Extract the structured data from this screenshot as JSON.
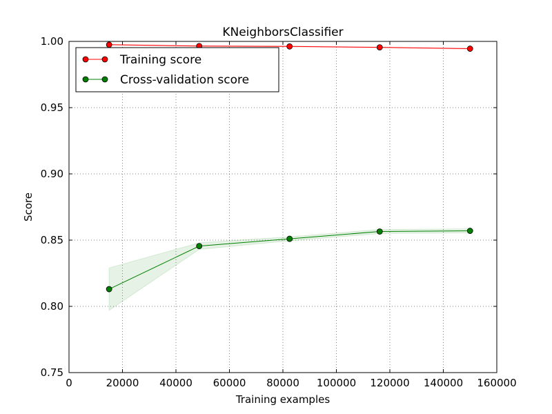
{
  "chart_data": {
    "type": "line",
    "title": "KNeighborsClassifier",
    "xlabel": "Training examples",
    "ylabel": "Score",
    "xlim": [
      0,
      160000
    ],
    "ylim": [
      0.75,
      1.0
    ],
    "x_ticks": [
      0,
      20000,
      40000,
      60000,
      80000,
      100000,
      120000,
      140000,
      160000
    ],
    "x_tick_labels": [
      "0",
      "20000",
      "40000",
      "60000",
      "80000",
      "100000",
      "120000",
      "140000",
      "160000"
    ],
    "y_ticks": [
      0.75,
      0.8,
      0.85,
      0.9,
      0.95,
      1.0
    ],
    "y_tick_labels": [
      "0.75",
      "0.80",
      "0.85",
      "0.90",
      "0.95",
      "1.00"
    ],
    "grid": true,
    "legend_position": "top-left",
    "x": [
      15000,
      48700,
      82500,
      116200,
      150000
    ],
    "series": [
      {
        "name": "Training score",
        "color": "#ff0000",
        "values": [
          0.9975,
          0.9965,
          0.9962,
          0.9955,
          0.9945
        ],
        "band_low": [
          0.9972,
          0.9962,
          0.9959,
          0.9952,
          0.9942
        ],
        "band_high": [
          0.9978,
          0.9968,
          0.9965,
          0.9958,
          0.9948
        ]
      },
      {
        "name": "Cross-validation score",
        "color": "#008000",
        "values": [
          0.813,
          0.8455,
          0.851,
          0.8565,
          0.857
        ],
        "band_low": [
          0.797,
          0.843,
          0.8495,
          0.855,
          0.8555
        ],
        "band_high": [
          0.829,
          0.848,
          0.8525,
          0.858,
          0.8585
        ]
      }
    ]
  }
}
